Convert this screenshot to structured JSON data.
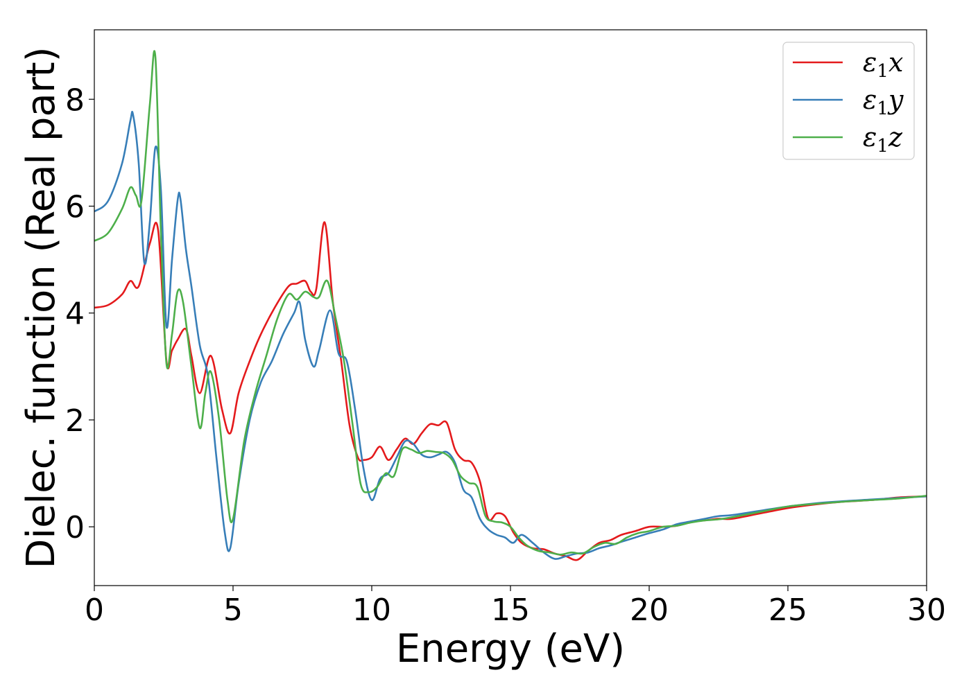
{
  "chart_data": {
    "type": "line",
    "xlabel": "Energy (eV)",
    "ylabel": "Dielec. function (Real part)",
    "xlim": [
      0,
      30
    ],
    "ylim": [
      -1.1,
      9.3
    ],
    "xticks": [
      0,
      5,
      10,
      15,
      20,
      25,
      30
    ],
    "yticks": [
      0,
      2,
      4,
      6,
      8
    ],
    "grid": false,
    "legend_position": "top-right",
    "series": [
      {
        "name": "ε1x",
        "legend_main": "ε",
        "legend_sub": "1",
        "legend_var": "x",
        "color": "#e41a1c",
        "x": [
          0,
          0.5,
          1.0,
          1.3,
          1.6,
          2.0,
          2.3,
          2.6,
          2.8,
          3.0,
          3.3,
          3.5,
          3.8,
          4.2,
          4.6,
          4.9,
          5.2,
          5.6,
          6.0,
          6.5,
          7.0,
          7.3,
          7.6,
          7.8,
          8.0,
          8.3,
          8.6,
          8.9,
          9.2,
          9.5,
          9.7,
          10.0,
          10.3,
          10.6,
          10.9,
          11.2,
          11.5,
          11.8,
          12.1,
          12.4,
          12.7,
          13.0,
          13.3,
          13.6,
          13.9,
          14.2,
          14.5,
          14.8,
          15.1,
          15.4,
          15.8,
          16.2,
          16.6,
          17.0,
          17.4,
          17.8,
          18.2,
          18.6,
          19.0,
          19.5,
          20.0,
          20.5,
          21.0,
          21.5,
          22.0,
          22.5,
          23.0,
          24.0,
          25.0,
          26.0,
          27.0,
          28.0,
          29.0,
          30.0
        ],
        "values": [
          4.1,
          4.15,
          4.35,
          4.6,
          4.5,
          5.3,
          5.55,
          3.1,
          3.3,
          3.5,
          3.7,
          3.2,
          2.5,
          3.2,
          2.2,
          1.75,
          2.5,
          3.1,
          3.6,
          4.1,
          4.5,
          4.55,
          4.6,
          4.4,
          4.45,
          5.7,
          4.2,
          3.1,
          1.9,
          1.3,
          1.25,
          1.3,
          1.5,
          1.25,
          1.45,
          1.65,
          1.55,
          1.75,
          1.92,
          1.9,
          1.95,
          1.45,
          1.25,
          1.2,
          0.85,
          0.15,
          0.25,
          0.2,
          -0.1,
          -0.3,
          -0.4,
          -0.42,
          -0.5,
          -0.55,
          -0.62,
          -0.45,
          -0.3,
          -0.25,
          -0.15,
          -0.08,
          0.0,
          0.0,
          0.02,
          0.1,
          0.12,
          0.15,
          0.15,
          0.25,
          0.35,
          0.42,
          0.47,
          0.5,
          0.55,
          0.57
        ]
      },
      {
        "name": "ε1y",
        "legend_main": "ε",
        "legend_sub": "1",
        "legend_var": "y",
        "color": "#377eb8",
        "x": [
          0,
          0.5,
          1.0,
          1.3,
          1.4,
          1.6,
          1.8,
          2.0,
          2.2,
          2.4,
          2.6,
          2.8,
          3.0,
          3.1,
          3.3,
          3.5,
          3.8,
          4.1,
          4.4,
          4.7,
          4.9,
          5.2,
          5.6,
          6.0,
          6.4,
          6.8,
          7.2,
          7.4,
          7.6,
          7.9,
          8.1,
          8.5,
          8.8,
          9.1,
          9.4,
          9.7,
          10.0,
          10.3,
          10.6,
          10.9,
          11.2,
          11.5,
          11.8,
          12.1,
          12.4,
          12.7,
          13.0,
          13.3,
          13.6,
          13.9,
          14.2,
          14.5,
          14.8,
          15.1,
          15.4,
          15.8,
          16.2,
          16.6,
          17.0,
          17.4,
          17.8,
          18.2,
          18.6,
          19.0,
          19.5,
          20.0,
          20.5,
          21.0,
          21.5,
          22.0,
          22.5,
          23.0,
          24.0,
          25.0,
          26.0,
          27.0,
          28.0,
          29.0,
          30.0
        ],
        "values": [
          5.9,
          6.1,
          6.8,
          7.6,
          7.7,
          6.8,
          4.95,
          5.7,
          7.1,
          6.3,
          3.75,
          5.0,
          6.1,
          6.15,
          5.2,
          4.5,
          3.4,
          2.8,
          1.3,
          -0.1,
          -0.4,
          0.8,
          2.0,
          2.7,
          3.1,
          3.6,
          4.0,
          4.2,
          3.5,
          3.0,
          3.3,
          4.05,
          3.25,
          3.1,
          2.2,
          1.1,
          0.5,
          0.9,
          1.0,
          1.3,
          1.6,
          1.55,
          1.35,
          1.3,
          1.35,
          1.4,
          1.2,
          0.7,
          0.55,
          0.15,
          -0.05,
          -0.15,
          -0.2,
          -0.3,
          -0.15,
          -0.3,
          -0.48,
          -0.6,
          -0.55,
          -0.5,
          -0.48,
          -0.4,
          -0.35,
          -0.28,
          -0.2,
          -0.12,
          -0.05,
          0.05,
          0.1,
          0.15,
          0.2,
          0.22,
          0.3,
          0.38,
          0.44,
          0.48,
          0.51,
          0.54,
          0.57
        ]
      },
      {
        "name": "ε1z",
        "legend_main": "ε",
        "legend_sub": "1",
        "legend_var": "z",
        "color": "#4daf4a",
        "x": [
          0,
          0.5,
          1.0,
          1.3,
          1.5,
          1.7,
          2.0,
          2.2,
          2.4,
          2.6,
          2.8,
          3.0,
          3.2,
          3.5,
          3.8,
          4.0,
          4.2,
          4.5,
          4.8,
          5.0,
          5.4,
          5.8,
          6.2,
          6.6,
          7.0,
          7.3,
          7.6,
          7.9,
          8.1,
          8.4,
          8.7,
          9.0,
          9.3,
          9.6,
          9.9,
          10.2,
          10.5,
          10.8,
          11.1,
          11.4,
          11.7,
          12.0,
          12.3,
          12.6,
          12.9,
          13.2,
          13.5,
          13.8,
          14.1,
          14.4,
          14.7,
          15.0,
          15.3,
          15.6,
          16.0,
          16.4,
          16.8,
          17.2,
          17.6,
          18.0,
          18.4,
          18.8,
          19.2,
          19.6,
          20.0,
          20.5,
          21.0,
          21.5,
          22.0,
          22.5,
          23.0,
          24.0,
          25.0,
          26.0,
          27.0,
          28.0,
          29.0,
          30.0
        ],
        "values": [
          5.35,
          5.5,
          5.95,
          6.35,
          6.2,
          6.1,
          7.9,
          8.8,
          5.5,
          3.05,
          3.6,
          4.4,
          4.2,
          3.0,
          1.85,
          2.5,
          2.9,
          2.0,
          0.5,
          0.15,
          1.6,
          2.5,
          3.2,
          3.9,
          4.35,
          4.25,
          4.4,
          4.3,
          4.3,
          4.6,
          3.9,
          3.1,
          1.95,
          0.8,
          0.65,
          0.75,
          1.0,
          0.95,
          1.45,
          1.45,
          1.38,
          1.42,
          1.4,
          1.38,
          1.25,
          0.95,
          0.82,
          0.75,
          0.2,
          0.1,
          0.08,
          0.0,
          -0.2,
          -0.35,
          -0.45,
          -0.48,
          -0.52,
          -0.48,
          -0.5,
          -0.38,
          -0.3,
          -0.32,
          -0.2,
          -0.12,
          -0.08,
          0.0,
          0.02,
          0.08,
          0.12,
          0.14,
          0.18,
          0.28,
          0.38,
          0.43,
          0.47,
          0.5,
          0.53,
          0.58
        ]
      }
    ]
  }
}
